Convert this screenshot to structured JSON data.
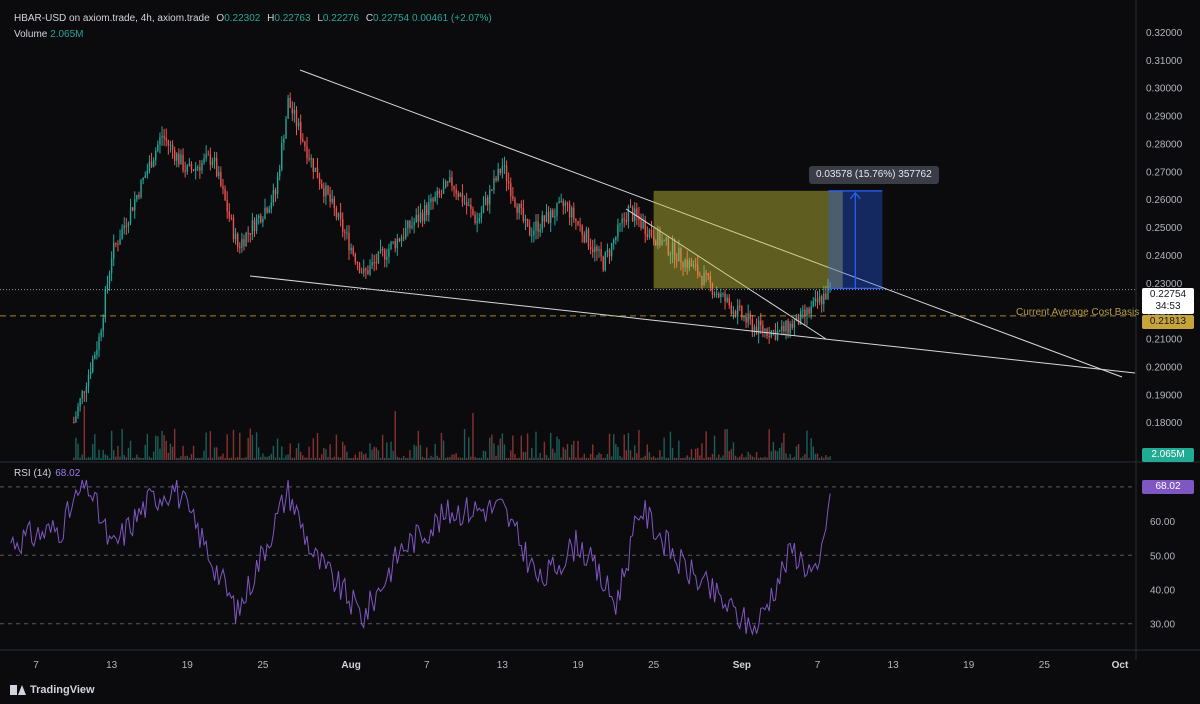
{
  "header": {
    "symbol": "HBAR-USD on axiom.trade, 4h, axiom.trade",
    "open_label": "O",
    "open": "0.22302",
    "high_label": "H",
    "high": "0.22763",
    "low_label": "L",
    "low": "0.22276",
    "close_label": "C",
    "close": "0.22754",
    "change": "0.00461 (+2.07%)",
    "volume_label": "Volume",
    "volume": "2.065M"
  },
  "rsi": {
    "label": "RSI (14)",
    "value": "68.02"
  },
  "price_tags": {
    "last": "0.22754",
    "countdown": "34:53",
    "cost_basis": "0.21813",
    "volume": "2.065M",
    "rsi": "68.02"
  },
  "annotations": {
    "measure": "0.03578 (15.76%) 357762",
    "cost_basis_label": "Current Average Cost Basis"
  },
  "brand": {
    "name": "TradingView",
    "icon": "tradingview-logo-icon"
  },
  "colors": {
    "up": "#26a69a",
    "down": "#ef5350",
    "rsi_line": "#7e57c2",
    "zone": "#c8c23a",
    "measure": "#2962ff",
    "cost_basis": "#c6a43b"
  },
  "chart_data": [
    {
      "type": "line",
      "subtype": "candlestick",
      "symbol": "HBAR-USD",
      "interval": "4h",
      "ylim": [
        0.17,
        0.32
      ],
      "y_ticks": [
        "0.32000",
        "0.31000",
        "0.30000",
        "0.29000",
        "0.28000",
        "0.27000",
        "0.26000",
        "0.25000",
        "0.24000",
        "0.23000",
        "0.22000",
        "0.21000",
        "0.20000",
        "0.19000",
        "0.18000"
      ],
      "x_ticks": [
        "7",
        "13",
        "19",
        "25",
        "Aug",
        "7",
        "13",
        "19",
        "25",
        "Sep",
        "7",
        "13",
        "19",
        "25",
        "Oct"
      ],
      "x_tick_dates": [
        "2024-07-07",
        "2024-07-13",
        "2024-07-19",
        "2024-07-25",
        "2024-08-01",
        "2024-08-07",
        "2024-08-13",
        "2024-08-19",
        "2024-08-25",
        "2024-09-01",
        "2024-09-07",
        "2024-09-13",
        "2024-09-19",
        "2024-09-25",
        "2024-10-01"
      ],
      "key_points": [
        {
          "date": "2024-07-10",
          "close": 0.18
        },
        {
          "date": "2024-07-12",
          "close": 0.21
        },
        {
          "date": "2024-07-13",
          "close": 0.24
        },
        {
          "date": "2024-07-17",
          "close": 0.283
        },
        {
          "date": "2024-07-19",
          "close": 0.27
        },
        {
          "date": "2024-07-21",
          "close": 0.275
        },
        {
          "date": "2024-07-23",
          "close": 0.243
        },
        {
          "date": "2024-07-26",
          "close": 0.262
        },
        {
          "date": "2024-07-27",
          "close": 0.295
        },
        {
          "date": "2024-07-29",
          "close": 0.272
        },
        {
          "date": "2024-08-02",
          "close": 0.233
        },
        {
          "date": "2024-08-05",
          "close": 0.247
        },
        {
          "date": "2024-08-09",
          "close": 0.266
        },
        {
          "date": "2024-08-11",
          "close": 0.252
        },
        {
          "date": "2024-08-13",
          "close": 0.272
        },
        {
          "date": "2024-08-15",
          "close": 0.248
        },
        {
          "date": "2024-08-18",
          "close": 0.258
        },
        {
          "date": "2024-08-21",
          "close": 0.237
        },
        {
          "date": "2024-08-23",
          "close": 0.256
        },
        {
          "date": "2024-08-25",
          "close": 0.247
        },
        {
          "date": "2024-08-28",
          "close": 0.236
        },
        {
          "date": "2024-08-31",
          "close": 0.222
        },
        {
          "date": "2024-09-02",
          "close": 0.214
        },
        {
          "date": "2024-09-04",
          "close": 0.212
        },
        {
          "date": "2024-09-06",
          "close": 0.218
        },
        {
          "date": "2024-09-08",
          "close": 0.22754
        }
      ],
      "last_price": 0.22754,
      "cost_basis": 0.21813,
      "zone": {
        "from_date": "2024-08-25",
        "to_date": "2024-09-09",
        "low": 0.228,
        "high": 0.263
      },
      "measure": {
        "date": "2024-09-10",
        "from": 0.228,
        "to": 0.263
      }
    },
    {
      "type": "line",
      "name": "RSI (14)",
      "ylim": [
        27,
        72
      ],
      "y_ticks": [
        "70.00",
        "60.00",
        "50.00",
        "40.00",
        "30.00"
      ],
      "levels": [
        70,
        50,
        30
      ],
      "key_points": [
        {
          "date": "2024-07-05",
          "value": 54
        },
        {
          "date": "2024-07-09",
          "value": 58
        },
        {
          "date": "2024-07-11",
          "value": 72
        },
        {
          "date": "2024-07-13",
          "value": 52
        },
        {
          "date": "2024-07-16",
          "value": 66
        },
        {
          "date": "2024-07-18",
          "value": 70
        },
        {
          "date": "2024-07-20",
          "value": 56
        },
        {
          "date": "2024-07-23",
          "value": 33
        },
        {
          "date": "2024-07-27",
          "value": 69
        },
        {
          "date": "2024-07-29",
          "value": 50
        },
        {
          "date": "2024-08-02",
          "value": 32
        },
        {
          "date": "2024-08-05",
          "value": 52
        },
        {
          "date": "2024-08-09",
          "value": 63
        },
        {
          "date": "2024-08-13",
          "value": 64
        },
        {
          "date": "2024-08-16",
          "value": 42
        },
        {
          "date": "2024-08-19",
          "value": 54
        },
        {
          "date": "2024-08-22",
          "value": 36
        },
        {
          "date": "2024-08-24",
          "value": 64
        },
        {
          "date": "2024-08-27",
          "value": 48
        },
        {
          "date": "2024-08-30",
          "value": 38
        },
        {
          "date": "2024-09-02",
          "value": 28
        },
        {
          "date": "2024-09-05",
          "value": 52
        },
        {
          "date": "2024-09-07",
          "value": 43
        },
        {
          "date": "2024-09-08",
          "value": 68.02
        }
      ]
    }
  ]
}
